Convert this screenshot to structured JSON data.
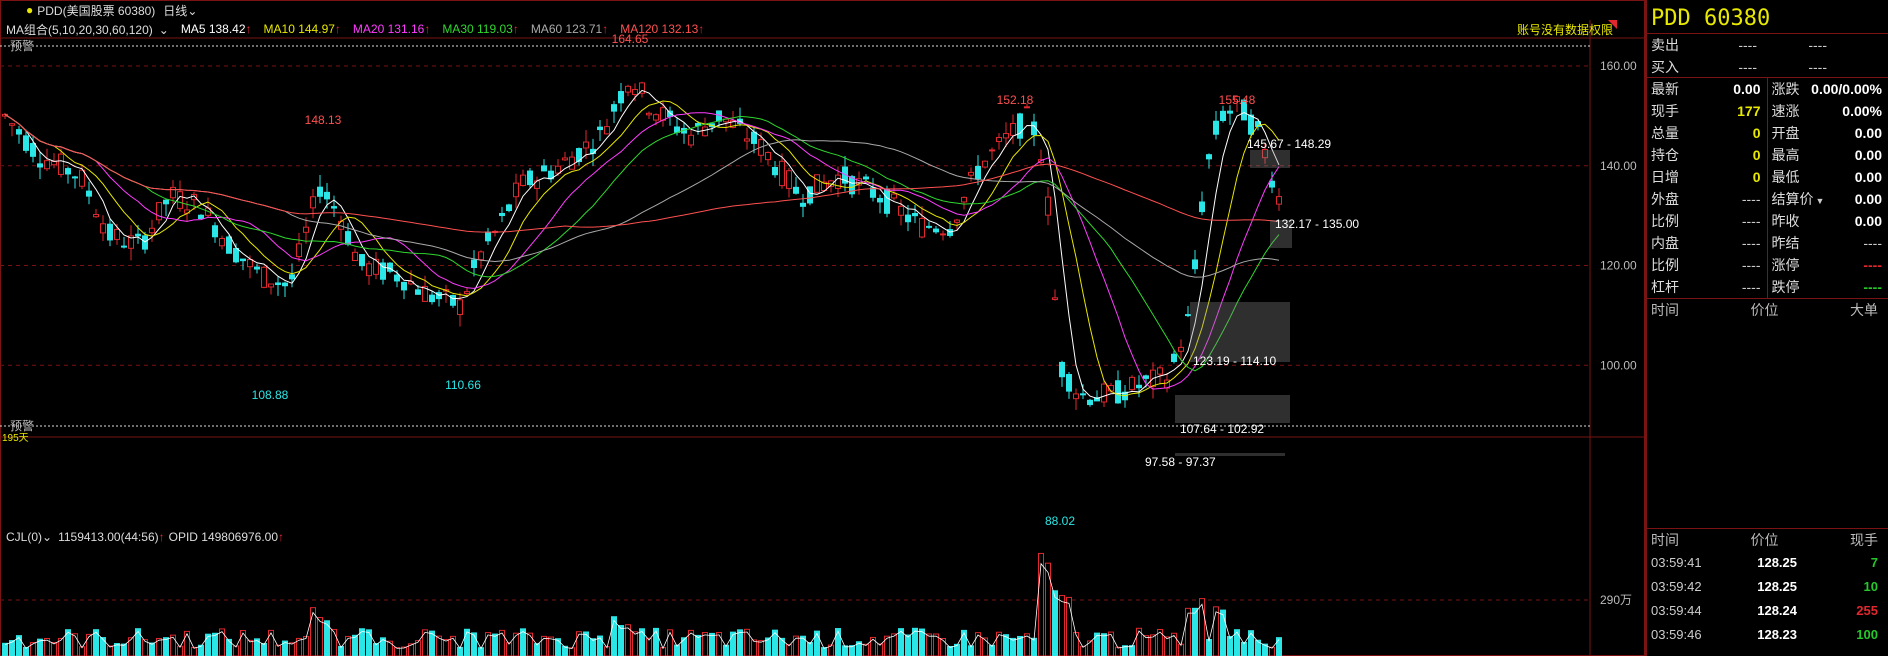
{
  "header": {
    "symbol_label": "PDD(美国股票 60380)",
    "period": "日线",
    "period_icon": "chevron-down-icon",
    "permission_note": "账号没有数据权限"
  },
  "ma_legend": {
    "title": "MA组合(5,10,20,30,60,120)",
    "items": [
      {
        "label": "MA5 138.42",
        "color": "#ffffff"
      },
      {
        "label": "MA10 144.97",
        "color": "#e8e800"
      },
      {
        "label": "MA20 131.16",
        "color": "#ff3cff"
      },
      {
        "label": "MA30 119.03",
        "color": "#2ed72e"
      },
      {
        "label": "MA60 123.71",
        "color": "#aaaaaa"
      },
      {
        "label": "MA120 132.13",
        "color": "#ff5050"
      }
    ]
  },
  "chart": {
    "y_axis_ticks": [
      "160.00",
      "140.00",
      "120.00",
      "100.00"
    ],
    "alert_top_label": "预警",
    "alert_bottom_label": "预警",
    "bottom_small_label": "195天",
    "extrema": {
      "high": "164.65",
      "low": "88.02",
      "peak_left": "148.13",
      "peak_mid": "152.18",
      "peak_right": "155.48",
      "trough_left": "108.88",
      "trough_mid": "110.66"
    },
    "zones": [
      "145.67 - 148.29",
      "132.17 - 135.00",
      "123.19 - 114.10",
      "107.64 - 102.92",
      "97.58 - 97.37"
    ],
    "colors": {
      "up": "#e0282e",
      "down": "#2ae6e6"
    }
  },
  "volume": {
    "title": "CJL(0)",
    "value": "1159413.00(44:56)",
    "opid": "OPID 149806976.00",
    "axis_label": "290万"
  },
  "side": {
    "symbol": "PDD  60380",
    "sell_label": "卖出",
    "buy_label": "买入",
    "dash": "----",
    "stats_left": [
      {
        "label": "最新",
        "value": "0.00",
        "style": ""
      },
      {
        "label": "现手",
        "value": "177",
        "style": "yellow"
      },
      {
        "label": "总量",
        "value": "0",
        "style": "yellow"
      },
      {
        "label": "持仓",
        "value": "0",
        "style": "yellow"
      },
      {
        "label": "日增",
        "value": "0",
        "style": "yellow"
      },
      {
        "label": "外盘",
        "value": "----",
        "style": "dash"
      },
      {
        "label": "比例",
        "value": "----",
        "style": "dash"
      },
      {
        "label": "内盘",
        "value": "----",
        "style": "dash"
      },
      {
        "label": "比例",
        "value": "----",
        "style": "dash"
      },
      {
        "label": "杠杆",
        "value": "----",
        "style": "dash"
      }
    ],
    "stats_right": [
      {
        "label": "涨跌",
        "value": "0.00/0.00%",
        "style": ""
      },
      {
        "label": "速涨",
        "value": "0.00%",
        "style": ""
      },
      {
        "label": "开盘",
        "value": "0.00",
        "style": ""
      },
      {
        "label": "最高",
        "value": "0.00",
        "style": ""
      },
      {
        "label": "最低",
        "value": "0.00",
        "style": ""
      },
      {
        "label": "结算价",
        "value": "0.00",
        "style": ""
      },
      {
        "label": "昨收",
        "value": "0.00",
        "style": ""
      },
      {
        "label": "昨结",
        "value": "----",
        "style": "dash"
      },
      {
        "label": "涨停",
        "value": "----",
        "style": "red"
      },
      {
        "label": "跌停",
        "value": "----",
        "style": "green"
      }
    ],
    "list_header": [
      "时间",
      "价位",
      "大单"
    ],
    "ticks_header": [
      "时间",
      "价位",
      "现手"
    ],
    "ticks": [
      {
        "time": "03:59:41",
        "price": "128.25",
        "qty": "7",
        "color": "green"
      },
      {
        "time": "03:59:42",
        "price": "128.25",
        "qty": "10",
        "color": "green"
      },
      {
        "time": "03:59:44",
        "price": "128.24",
        "qty": "255",
        "color": "red"
      },
      {
        "time": "03:59:46",
        "price": "128.23",
        "qty": "100",
        "color": "green"
      }
    ]
  }
}
